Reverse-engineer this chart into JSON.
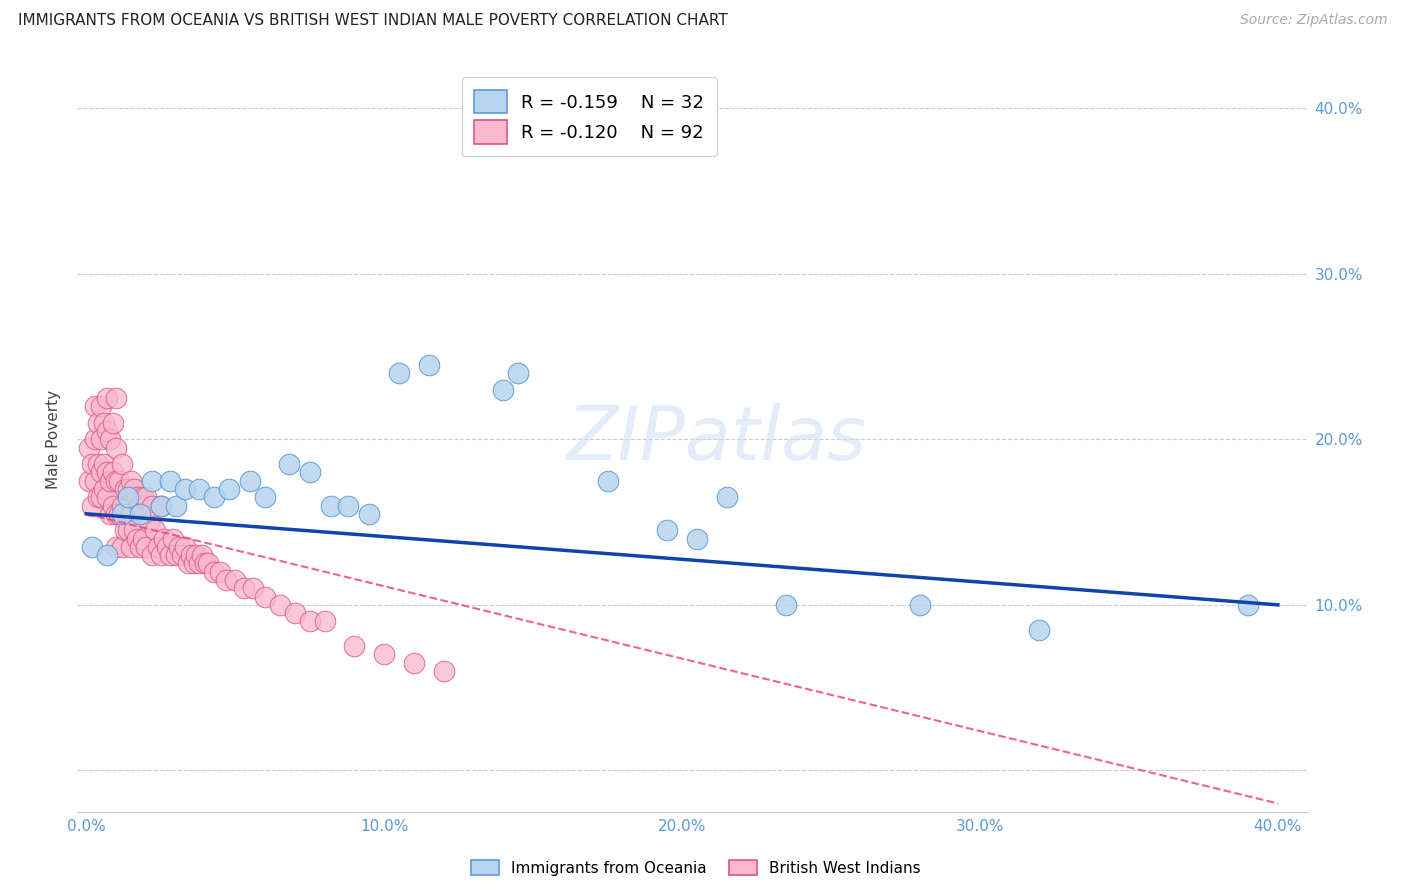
{
  "title": "IMMIGRANTS FROM OCEANIA VS BRITISH WEST INDIAN MALE POVERTY CORRELATION CHART",
  "source": "Source: ZipAtlas.com",
  "ylabel": "Male Poverty",
  "xlim": [
    -0.003,
    0.41
  ],
  "ylim": [
    -0.025,
    0.425
  ],
  "yticks": [
    0.0,
    0.1,
    0.2,
    0.3,
    0.4
  ],
  "xticks": [
    0.0,
    0.1,
    0.2,
    0.3,
    0.4
  ],
  "ytick_labels_right": [
    "",
    "10.0%",
    "20.0%",
    "30.0%",
    "40.0%"
  ],
  "xtick_labels": [
    "0.0%",
    "10.0%",
    "20.0%",
    "30.0%",
    "40.0%"
  ],
  "axis_color": "#5b9bd5",
  "series1_color": "#b8d4ee",
  "series1_edge": "#5b9bd5",
  "series2_color": "#f9b8cc",
  "series2_edge": "#dd5588",
  "line1_color": "#1144aa",
  "line2_color": "#ee4488",
  "oceania_x": [
    0.002,
    0.007,
    0.012,
    0.014,
    0.018,
    0.022,
    0.025,
    0.028,
    0.03,
    0.033,
    0.038,
    0.043,
    0.048,
    0.055,
    0.06,
    0.068,
    0.075,
    0.082,
    0.088,
    0.095,
    0.105,
    0.115,
    0.14,
    0.145,
    0.175,
    0.195,
    0.205,
    0.215,
    0.235,
    0.28,
    0.32,
    0.39
  ],
  "oceania_y": [
    0.135,
    0.13,
    0.155,
    0.165,
    0.155,
    0.175,
    0.16,
    0.175,
    0.16,
    0.17,
    0.17,
    0.165,
    0.17,
    0.175,
    0.165,
    0.185,
    0.18,
    0.16,
    0.16,
    0.155,
    0.24,
    0.245,
    0.23,
    0.24,
    0.175,
    0.145,
    0.14,
    0.165,
    0.1,
    0.1,
    0.085,
    0.1
  ],
  "bwi_x": [
    0.001,
    0.001,
    0.002,
    0.002,
    0.003,
    0.003,
    0.003,
    0.004,
    0.004,
    0.004,
    0.005,
    0.005,
    0.005,
    0.005,
    0.006,
    0.006,
    0.006,
    0.007,
    0.007,
    0.007,
    0.007,
    0.008,
    0.008,
    0.008,
    0.009,
    0.009,
    0.009,
    0.01,
    0.01,
    0.01,
    0.01,
    0.01,
    0.011,
    0.011,
    0.012,
    0.012,
    0.012,
    0.013,
    0.013,
    0.014,
    0.014,
    0.015,
    0.015,
    0.015,
    0.016,
    0.016,
    0.017,
    0.017,
    0.018,
    0.018,
    0.019,
    0.019,
    0.02,
    0.02,
    0.021,
    0.022,
    0.022,
    0.023,
    0.024,
    0.025,
    0.025,
    0.026,
    0.027,
    0.028,
    0.029,
    0.03,
    0.031,
    0.032,
    0.033,
    0.034,
    0.035,
    0.036,
    0.037,
    0.038,
    0.039,
    0.04,
    0.041,
    0.043,
    0.045,
    0.047,
    0.05,
    0.053,
    0.056,
    0.06,
    0.065,
    0.07,
    0.075,
    0.08,
    0.09,
    0.1,
    0.11,
    0.12
  ],
  "bwi_y": [
    0.175,
    0.195,
    0.16,
    0.185,
    0.175,
    0.2,
    0.22,
    0.165,
    0.185,
    0.21,
    0.165,
    0.18,
    0.2,
    0.22,
    0.17,
    0.185,
    0.21,
    0.165,
    0.18,
    0.205,
    0.225,
    0.155,
    0.175,
    0.2,
    0.16,
    0.18,
    0.21,
    0.135,
    0.155,
    0.175,
    0.195,
    0.225,
    0.155,
    0.175,
    0.135,
    0.16,
    0.185,
    0.145,
    0.17,
    0.145,
    0.17,
    0.135,
    0.155,
    0.175,
    0.145,
    0.17,
    0.14,
    0.165,
    0.135,
    0.16,
    0.14,
    0.165,
    0.135,
    0.165,
    0.15,
    0.13,
    0.16,
    0.145,
    0.135,
    0.13,
    0.16,
    0.14,
    0.135,
    0.13,
    0.14,
    0.13,
    0.135,
    0.13,
    0.135,
    0.125,
    0.13,
    0.125,
    0.13,
    0.125,
    0.13,
    0.125,
    0.125,
    0.12,
    0.12,
    0.115,
    0.115,
    0.11,
    0.11,
    0.105,
    0.1,
    0.095,
    0.09,
    0.09,
    0.075,
    0.07,
    0.065,
    0.06
  ],
  "blue_line_x0": 0.0,
  "blue_line_y0": 0.155,
  "blue_line_x1": 0.4,
  "blue_line_y1": 0.1,
  "pink_line_x0": 0.0,
  "pink_line_y0": 0.155,
  "pink_line_x1": 0.4,
  "pink_line_y1": -0.02
}
